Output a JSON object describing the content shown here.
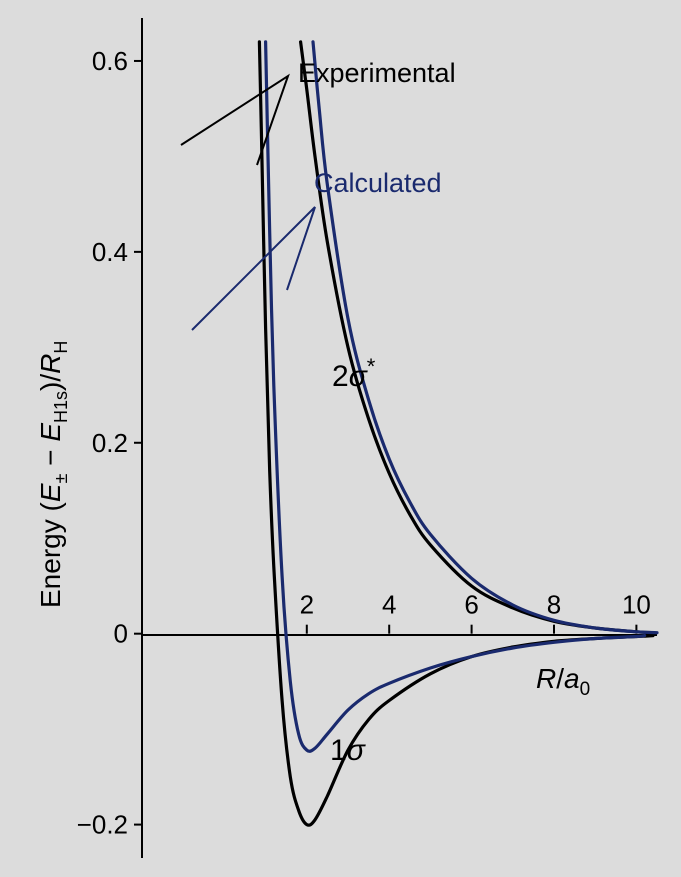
{
  "colors": {
    "background": "#dcdcdc",
    "experimental": "#000000",
    "calculated": "#1a2a6e"
  },
  "chart_data": {
    "type": "line",
    "xlabel_parts": [
      "R",
      "/",
      "a",
      "0"
    ],
    "ylabel_parts": [
      "Energy (",
      "E",
      "±",
      " − ",
      "E",
      "H1s",
      ")/",
      "R",
      "H"
    ],
    "xlim": [
      -2.0,
      10.5
    ],
    "ylim": [
      -0.235,
      0.645
    ],
    "x_ticks": [
      2,
      4,
      6,
      8,
      10
    ],
    "x_tick_labels": [
      "2",
      "4",
      "6",
      "8",
      "10"
    ],
    "y_ticks": [
      -0.2,
      0,
      0.2,
      0.4,
      0.6
    ],
    "y_tick_labels": [
      "−0.2",
      "0",
      "0.2",
      "0.4",
      "0.6"
    ],
    "annotations": {
      "experimental": "Experimental",
      "calculated": "Calculated",
      "antibonding_num": "2",
      "antibonding_sym": "σ",
      "antibonding_star": "*",
      "bonding_num": "1",
      "bonding_sym": "σ"
    },
    "series": [
      {
        "key": "exp_1s",
        "color": "experimental",
        "x": [
          0.85,
          0.9,
          1.0,
          1.1,
          1.2,
          1.4,
          1.6,
          1.8,
          2.0,
          2.2,
          2.5,
          3.0,
          3.5,
          4.0,
          5.0,
          6.0,
          7.0,
          8.0,
          9.0,
          10.0,
          10.4
        ],
        "y": [
          0.62,
          0.52,
          0.32,
          0.17,
          0.07,
          -0.07,
          -0.15,
          -0.185,
          -0.2,
          -0.195,
          -0.17,
          -0.122,
          -0.09,
          -0.07,
          -0.042,
          -0.024,
          -0.014,
          -0.008,
          -0.005,
          -0.003,
          -0.002
        ]
      },
      {
        "key": "calc_1s",
        "color": "calculated",
        "x": [
          1.0,
          1.1,
          1.2,
          1.4,
          1.6,
          1.8,
          2.0,
          2.2,
          2.5,
          3.0,
          3.5,
          4.0,
          5.0,
          6.0,
          7.0,
          8.0,
          9.0,
          10.0,
          10.2
        ],
        "y": [
          0.62,
          0.42,
          0.26,
          0.06,
          -0.05,
          -0.105,
          -0.122,
          -0.12,
          -0.105,
          -0.08,
          -0.063,
          -0.052,
          -0.036,
          -0.024,
          -0.015,
          -0.009,
          -0.005,
          -0.003,
          -0.002
        ]
      },
      {
        "key": "exp_2s",
        "color": "experimental",
        "x": [
          1.85,
          2.0,
          2.2,
          2.5,
          3.0,
          3.5,
          4.0,
          4.5,
          5.0,
          6.0,
          7.0,
          8.0,
          9.0,
          10.0,
          10.4
        ],
        "y": [
          0.62,
          0.57,
          0.5,
          0.41,
          0.3,
          0.225,
          0.168,
          0.125,
          0.093,
          0.05,
          0.027,
          0.013,
          0.006,
          0.002,
          0.001
        ]
      },
      {
        "key": "calc_2s",
        "color": "calculated",
        "x": [
          2.15,
          2.3,
          2.5,
          3.0,
          3.5,
          4.0,
          4.5,
          5.0,
          6.0,
          7.0,
          8.0,
          9.0,
          10.0,
          10.5
        ],
        "y": [
          0.62,
          0.55,
          0.47,
          0.33,
          0.245,
          0.183,
          0.138,
          0.104,
          0.058,
          0.03,
          0.014,
          0.006,
          0.002,
          0.001
        ]
      }
    ]
  }
}
